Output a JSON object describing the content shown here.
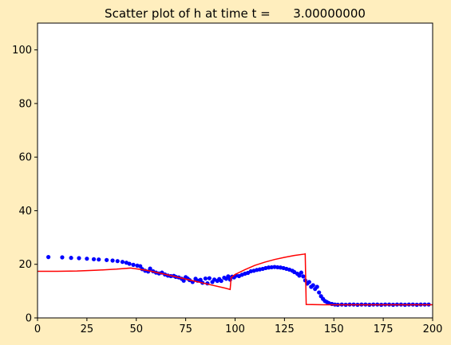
{
  "chart_data": {
    "type": "scatter",
    "title": "Scatter plot of h at time t =      3.00000000",
    "xlabel": "",
    "ylabel": "",
    "xlim": [
      0,
      200
    ],
    "ylim": [
      0,
      110
    ],
    "x_ticks": [
      0,
      25,
      50,
      75,
      100,
      125,
      150,
      175,
      200
    ],
    "y_ticks": [
      0,
      20,
      40,
      60,
      80,
      100
    ],
    "grid": false,
    "colors": {
      "figure_background": "#ffeebe",
      "axes_background": "#ffffff",
      "scatter": "#0000ff",
      "line": "#ff0000"
    },
    "series": [
      {
        "kind": "scatter",
        "color": "#0000ff",
        "points": [
          [
            5.5,
            22.7
          ],
          [
            12.5,
            22.6
          ],
          [
            17,
            22.4
          ],
          [
            21,
            22.3
          ],
          [
            25,
            22.1
          ],
          [
            28.5,
            21.9
          ],
          [
            31,
            21.8
          ],
          [
            35,
            21.6
          ],
          [
            38,
            21.4
          ],
          [
            40.5,
            21.2
          ],
          [
            43,
            20.9
          ],
          [
            45,
            20.6
          ],
          [
            46.5,
            20.2
          ],
          [
            48.5,
            19.8
          ],
          [
            50.5,
            19.5
          ],
          [
            52,
            19.3
          ],
          [
            53,
            18.2
          ],
          [
            54.5,
            17.6
          ],
          [
            56,
            17.3
          ],
          [
            57,
            18.4
          ],
          [
            58.5,
            17.4
          ],
          [
            60,
            16.9
          ],
          [
            61.5,
            16.6
          ],
          [
            63,
            16.9
          ],
          [
            64.5,
            16.2
          ],
          [
            66,
            15.8
          ],
          [
            67.5,
            15.6
          ],
          [
            69,
            15.7
          ],
          [
            70,
            15.3
          ],
          [
            71.5,
            15.1
          ],
          [
            73,
            14.6
          ],
          [
            74,
            13.9
          ],
          [
            75,
            15.2
          ],
          [
            76,
            14.7
          ],
          [
            77,
            14.1
          ],
          [
            78.5,
            13.4
          ],
          [
            80,
            14.6
          ],
          [
            81,
            13.9
          ],
          [
            82.5,
            14.2
          ],
          [
            83.5,
            13.1
          ],
          [
            85,
            14.7
          ],
          [
            86,
            12.9
          ],
          [
            87,
            14.8
          ],
          [
            88.5,
            13.4
          ],
          [
            89.5,
            14.3
          ],
          [
            91,
            13.8
          ],
          [
            92,
            14.5
          ],
          [
            93,
            13.8
          ],
          [
            94.5,
            15.0
          ],
          [
            95.5,
            14.6
          ],
          [
            96.5,
            15.5
          ],
          [
            97.5,
            14.3
          ],
          [
            98.5,
            15.4
          ],
          [
            99.5,
            15.1
          ],
          [
            100.5,
            15.8
          ],
          [
            102,
            15.6
          ],
          [
            103.5,
            16.1
          ],
          [
            105,
            16.5
          ],
          [
            106.5,
            16.8
          ],
          [
            108,
            17.4
          ],
          [
            109.5,
            17.6
          ],
          [
            111,
            17.9
          ],
          [
            112.5,
            18.1
          ],
          [
            114,
            18.3
          ],
          [
            115.5,
            18.6
          ],
          [
            117,
            18.8
          ],
          [
            118.5,
            18.9
          ],
          [
            120,
            19.0
          ],
          [
            121.5,
            18.9
          ],
          [
            123,
            18.8
          ],
          [
            124.5,
            18.6
          ],
          [
            126,
            18.3
          ],
          [
            127.5,
            18.0
          ],
          [
            129,
            17.6
          ],
          [
            130,
            17.1
          ],
          [
            131.5,
            16.5
          ],
          [
            132.5,
            15.8
          ],
          [
            133.5,
            16.9
          ],
          [
            134.5,
            15.5
          ],
          [
            135.5,
            14.0
          ],
          [
            136.5,
            12.8
          ],
          [
            137.5,
            13.4
          ],
          [
            138.5,
            11.6
          ],
          [
            139.5,
            12.2
          ],
          [
            140.5,
            10.8
          ],
          [
            141.5,
            11.6
          ],
          [
            142.5,
            9.5
          ],
          [
            143.5,
            8.1
          ],
          [
            144.5,
            7.1
          ],
          [
            145.5,
            6.3
          ],
          [
            146.5,
            5.9
          ],
          [
            147.5,
            5.5
          ],
          [
            149,
            5.2
          ],
          [
            150.5,
            5.0
          ],
          [
            152,
            4.9
          ],
          [
            154,
            5.0
          ],
          [
            156,
            4.9
          ],
          [
            158,
            5.0
          ],
          [
            160,
            5.0
          ],
          [
            162,
            4.9
          ],
          [
            164,
            5.0
          ],
          [
            166,
            5.0
          ],
          [
            168,
            4.9
          ],
          [
            170,
            5.0
          ],
          [
            172,
            5.0
          ],
          [
            174,
            4.9
          ],
          [
            176,
            5.0
          ],
          [
            178,
            5.0
          ],
          [
            180,
            4.9
          ],
          [
            182,
            5.0
          ],
          [
            184,
            5.0
          ],
          [
            186,
            4.9
          ],
          [
            188,
            5.0
          ],
          [
            190,
            5.0
          ],
          [
            192,
            4.9
          ],
          [
            194,
            5.0
          ],
          [
            196,
            5.0
          ],
          [
            198,
            5.0
          ]
        ]
      },
      {
        "kind": "line",
        "color": "#ff0000",
        "points": [
          [
            0,
            17.4
          ],
          [
            10,
            17.4
          ],
          [
            20,
            17.5
          ],
          [
            30,
            17.8
          ],
          [
            40,
            18.2
          ],
          [
            47,
            18.6
          ],
          [
            55,
            17.8
          ],
          [
            65,
            16.2
          ],
          [
            75,
            14.5
          ],
          [
            85,
            12.8
          ],
          [
            95,
            11.1
          ],
          [
            97.5,
            10.6
          ],
          [
            98,
            15.0
          ],
          [
            100,
            16.2
          ],
          [
            105,
            18.0
          ],
          [
            110,
            19.6
          ],
          [
            115,
            20.8
          ],
          [
            120,
            21.8
          ],
          [
            125,
            22.6
          ],
          [
            130,
            23.3
          ],
          [
            135,
            23.8
          ],
          [
            135.5,
            23.9
          ],
          [
            136,
            5.0
          ],
          [
            145,
            4.9
          ],
          [
            155,
            4.9
          ],
          [
            200,
            4.9
          ]
        ]
      }
    ]
  }
}
